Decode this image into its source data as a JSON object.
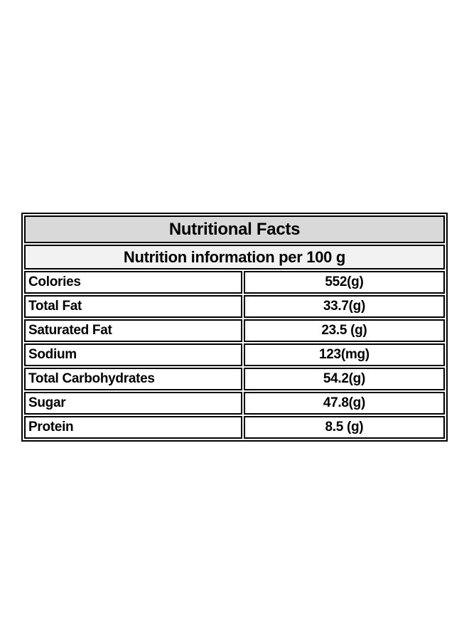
{
  "nutrition_label": {
    "title": "Nutritional Facts",
    "subtitle": "Nutrition information per 100 g",
    "rows": [
      {
        "label": "Colories",
        "value": "552(g)"
      },
      {
        "label": "Total Fat",
        "value": "33.7(g)"
      },
      {
        "label": "Saturated Fat",
        "value": "23.5 (g)"
      },
      {
        "label": "Sodium",
        "value": "123(mg)"
      },
      {
        "label": "Total Carbohydrates",
        "value": "54.2(g)"
      },
      {
        "label": "Sugar",
        "value": "47.8(g)"
      },
      {
        "label": "Protein",
        "value": "8.5 (g)"
      }
    ],
    "colors": {
      "title_background": "#d9d9d9",
      "subtitle_background": "#f2f2f2",
      "row_background": "#ffffff",
      "border": "#000000",
      "text": "#000000",
      "page_background": "#ffffff"
    }
  }
}
